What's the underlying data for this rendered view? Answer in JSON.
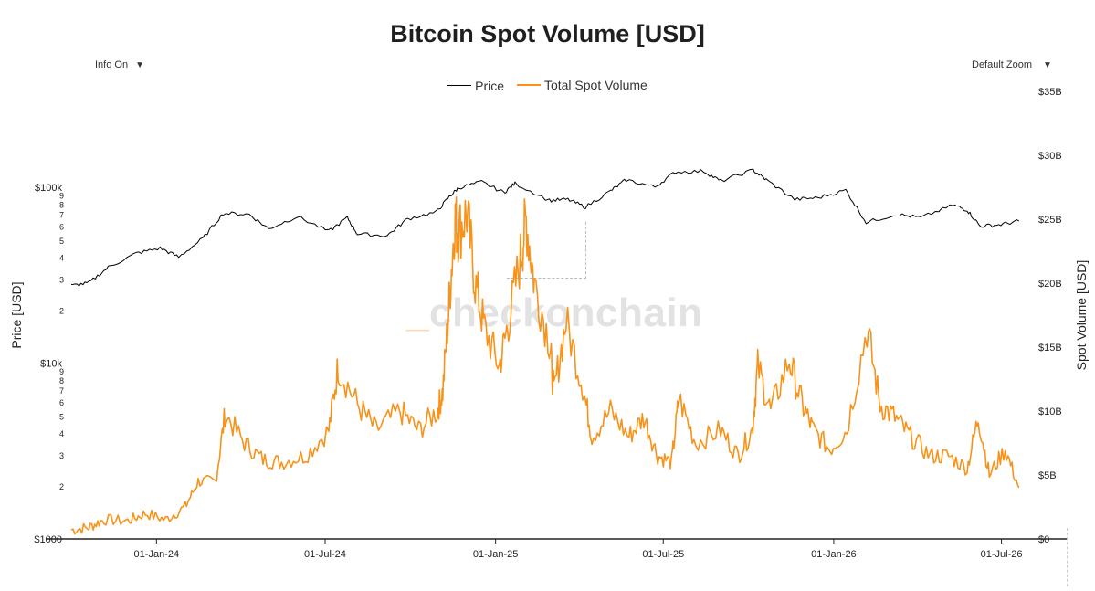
{
  "title": "Bitcoin Spot Volume [USD]",
  "controls": {
    "info_label": "Info On",
    "zoom_label": "Default Zoom"
  },
  "watermark": {
    "prefix": "_",
    "text": "checkonchain"
  },
  "colors": {
    "price": "#000000",
    "volume": "#f7931a"
  },
  "chart_data": {
    "type": "line",
    "title": "Bitcoin Spot Volume [USD]",
    "xlabel": "",
    "x_ticks": [
      "01-Jan-24",
      "01-Jul-24",
      "01-Jan-25",
      "01-Jul-25",
      "01-Jan-26",
      "01-Jul-26"
    ],
    "x_range": [
      "2023-10-01",
      "2026-08-01"
    ],
    "y_left": {
      "label": "Price [USD]",
      "scale": "log",
      "range": [
        1000,
        350000
      ],
      "ticks": [
        {
          "v": 1000,
          "t": "$1000"
        },
        {
          "v": 2000,
          "t": "2"
        },
        {
          "v": 3000,
          "t": "3"
        },
        {
          "v": 4000,
          "t": "4"
        },
        {
          "v": 5000,
          "t": "5"
        },
        {
          "v": 6000,
          "t": "6"
        },
        {
          "v": 7000,
          "t": "7"
        },
        {
          "v": 8000,
          "t": "8"
        },
        {
          "v": 9000,
          "t": "9"
        },
        {
          "v": 10000,
          "t": "$10k"
        },
        {
          "v": 20000,
          "t": "2"
        },
        {
          "v": 30000,
          "t": "3"
        },
        {
          "v": 40000,
          "t": "4"
        },
        {
          "v": 50000,
          "t": "5"
        },
        {
          "v": 60000,
          "t": "6"
        },
        {
          "v": 70000,
          "t": "7"
        },
        {
          "v": 80000,
          "t": "8"
        },
        {
          "v": 90000,
          "t": "9"
        },
        {
          "v": 100000,
          "t": "$100k"
        }
      ]
    },
    "y_right": {
      "label": "Spot Volume [USD]",
      "scale": "linear",
      "range": [
        0,
        35
      ],
      "ticks": [
        {
          "v": 0,
          "t": "$0"
        },
        {
          "v": 5,
          "t": "$5B"
        },
        {
          "v": 10,
          "t": "$10B"
        },
        {
          "v": 15,
          "t": "$15B"
        },
        {
          "v": 20,
          "t": "$20B"
        },
        {
          "v": 25,
          "t": "$25B"
        },
        {
          "v": 30,
          "t": "$30B"
        },
        {
          "v": 35,
          "t": "$35B"
        }
      ]
    },
    "series": [
      {
        "name": "Price",
        "axis": "left",
        "points": [
          [
            "2023-10-01",
            27500
          ],
          [
            "2023-10-20",
            28500
          ],
          [
            "2023-11-10",
            35000
          ],
          [
            "2023-12-10",
            42000
          ],
          [
            "2024-01-05",
            45000
          ],
          [
            "2024-01-25",
            40000
          ],
          [
            "2024-02-20",
            51000
          ],
          [
            "2024-03-13",
            71000
          ],
          [
            "2024-04-10",
            70000
          ],
          [
            "2024-05-01",
            58000
          ],
          [
            "2024-06-01",
            68000
          ],
          [
            "2024-07-05",
            56000
          ],
          [
            "2024-07-25",
            67000
          ],
          [
            "2024-08-05",
            54000
          ],
          [
            "2024-09-06",
            53000
          ],
          [
            "2024-09-28",
            66000
          ],
          [
            "2024-10-29",
            72000
          ],
          [
            "2024-11-12",
            88000
          ],
          [
            "2024-11-22",
            99000
          ],
          [
            "2024-12-17",
            107000
          ],
          [
            "2025-01-10",
            93000
          ],
          [
            "2025-01-22",
            105000
          ],
          [
            "2025-02-28",
            84000
          ],
          [
            "2025-03-20",
            85000
          ],
          [
            "2025-04-08",
            77000
          ],
          [
            "2025-05-05",
            95000
          ],
          [
            "2025-05-22",
            110000
          ],
          [
            "2025-06-22",
            100000
          ],
          [
            "2025-07-14",
            122000
          ],
          [
            "2025-08-14",
            123000
          ],
          [
            "2025-09-01",
            108000
          ],
          [
            "2025-10-06",
            125000
          ],
          [
            "2025-10-20",
            110000
          ],
          [
            "2025-11-20",
            85000
          ],
          [
            "2025-12-15",
            87000
          ],
          [
            "2026-01-14",
            96000
          ],
          [
            "2026-02-05",
            63000
          ],
          [
            "2026-03-10",
            70000
          ],
          [
            "2026-04-05",
            67000
          ],
          [
            "2026-05-10",
            79000
          ],
          [
            "2026-05-25",
            74000
          ],
          [
            "2026-06-08",
            60000
          ],
          [
            "2026-06-28",
            61000
          ],
          [
            "2026-07-20",
            64000
          ]
        ]
      },
      {
        "name": "Total Spot Volume",
        "axis": "right",
        "unit": "USD billions",
        "points": [
          [
            "2023-10-01",
            0.7
          ],
          [
            "2023-10-20",
            0.9
          ],
          [
            "2023-11-05",
            1.5
          ],
          [
            "2023-12-01",
            1.4
          ],
          [
            "2023-12-20",
            2.0
          ],
          [
            "2024-01-11",
            1.5
          ],
          [
            "2024-02-01",
            2.5
          ],
          [
            "2024-02-15",
            4.5
          ],
          [
            "2024-03-05",
            4.5
          ],
          [
            "2024-03-15",
            9.8
          ],
          [
            "2024-04-05",
            7.5
          ],
          [
            "2024-04-25",
            6.2
          ],
          [
            "2024-05-15",
            6.0
          ],
          [
            "2024-06-10",
            6.5
          ],
          [
            "2024-07-05",
            8.5
          ],
          [
            "2024-07-15",
            13.5
          ],
          [
            "2024-08-05",
            10.5
          ],
          [
            "2024-08-25",
            8.5
          ],
          [
            "2024-09-20",
            10.0
          ],
          [
            "2024-10-10",
            8.5
          ],
          [
            "2024-10-30",
            10.0
          ],
          [
            "2024-11-05",
            11.5
          ],
          [
            "2024-11-12",
            18.5
          ],
          [
            "2024-11-18",
            25.0
          ],
          [
            "2024-11-22",
            24.0
          ],
          [
            "2024-12-01",
            25.5
          ],
          [
            "2024-12-10",
            20.0
          ],
          [
            "2024-12-20",
            16.5
          ],
          [
            "2025-01-05",
            13.5
          ],
          [
            "2025-01-15",
            17.0
          ],
          [
            "2025-01-28",
            22.0
          ],
          [
            "2025-02-03",
            25.0
          ],
          [
            "2025-02-12",
            20.0
          ],
          [
            "2025-02-28",
            15.5
          ],
          [
            "2025-03-05",
            11.5
          ],
          [
            "2025-03-18",
            17.0
          ],
          [
            "2025-04-05",
            12.0
          ],
          [
            "2025-04-15",
            8.0
          ],
          [
            "2025-05-05",
            10.0
          ],
          [
            "2025-05-25",
            8.0
          ],
          [
            "2025-06-10",
            9.5
          ],
          [
            "2025-06-25",
            6.5
          ],
          [
            "2025-07-10",
            6.0
          ],
          [
            "2025-07-18",
            11.0
          ],
          [
            "2025-08-05",
            7.5
          ],
          [
            "2025-09-01",
            8.5
          ],
          [
            "2025-09-20",
            6.5
          ],
          [
            "2025-10-05",
            8.5
          ],
          [
            "2025-10-11",
            13.5
          ],
          [
            "2025-10-25",
            10.0
          ],
          [
            "2025-11-14",
            14.0
          ],
          [
            "2025-11-28",
            10.5
          ],
          [
            "2025-12-10",
            8.5
          ],
          [
            "2025-12-28",
            7.0
          ],
          [
            "2026-01-15",
            8.5
          ],
          [
            "2026-02-06",
            16.5
          ],
          [
            "2026-02-20",
            10.5
          ],
          [
            "2026-03-08",
            9.5
          ],
          [
            "2026-03-25",
            8.0
          ],
          [
            "2026-04-15",
            6.5
          ],
          [
            "2026-05-05",
            6.5
          ],
          [
            "2026-05-25",
            5.5
          ],
          [
            "2026-06-06",
            9.5
          ],
          [
            "2026-06-18",
            5.0
          ],
          [
            "2026-07-05",
            7.0
          ],
          [
            "2026-07-20",
            4.0
          ]
        ]
      }
    ],
    "grid": false,
    "legend_position": "top-center"
  }
}
